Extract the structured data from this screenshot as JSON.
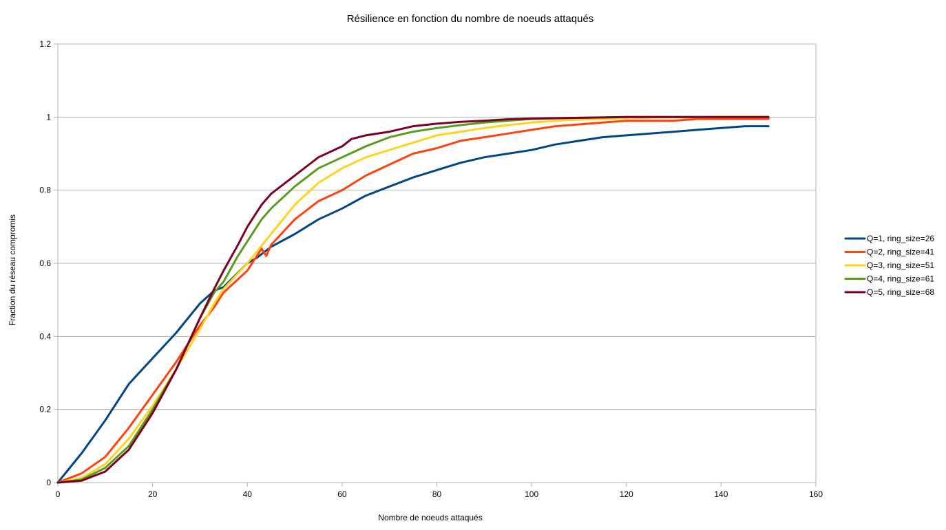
{
  "chart_data": {
    "type": "line",
    "title": "Résilience en fonction du nombre de noeuds attaqués",
    "xlabel": "Nombre de noeuds attaqués",
    "ylabel": "Fraction du réseau compromis",
    "xlim": [
      0,
      160
    ],
    "ylim": [
      0,
      1.2
    ],
    "x_ticks": [
      "0",
      "20",
      "40",
      "60",
      "80",
      "100",
      "120",
      "140",
      "160"
    ],
    "y_ticks": [
      "0",
      "0.2",
      "0.4",
      "0.6",
      "0.8",
      "1",
      "1.2"
    ],
    "grid": "horizontal",
    "legend_position": "right",
    "series": [
      {
        "name": "Q=1, ring_size=26",
        "color": "#004586",
        "points": [
          [
            0,
            0
          ],
          [
            5,
            0.08
          ],
          [
            10,
            0.17
          ],
          [
            15,
            0.27
          ],
          [
            20,
            0.34
          ],
          [
            25,
            0.41
          ],
          [
            30,
            0.49
          ],
          [
            33,
            0.525
          ],
          [
            35,
            0.535
          ],
          [
            40,
            0.6
          ],
          [
            42,
            0.615
          ],
          [
            45,
            0.645
          ],
          [
            50,
            0.68
          ],
          [
            55,
            0.72
          ],
          [
            60,
            0.75
          ],
          [
            65,
            0.785
          ],
          [
            70,
            0.81
          ],
          [
            75,
            0.835
          ],
          [
            80,
            0.855
          ],
          [
            85,
            0.875
          ],
          [
            90,
            0.89
          ],
          [
            95,
            0.9
          ],
          [
            100,
            0.91
          ],
          [
            105,
            0.925
          ],
          [
            110,
            0.935
          ],
          [
            115,
            0.945
          ],
          [
            120,
            0.95
          ],
          [
            125,
            0.955
          ],
          [
            130,
            0.96
          ],
          [
            135,
            0.965
          ],
          [
            140,
            0.97
          ],
          [
            145,
            0.975
          ],
          [
            150,
            0.975
          ]
        ]
      },
      {
        "name": "Q=2, ring_size=41",
        "color": "#ff420e",
        "points": [
          [
            0,
            0
          ],
          [
            5,
            0.025
          ],
          [
            10,
            0.07
          ],
          [
            15,
            0.15
          ],
          [
            20,
            0.24
          ],
          [
            25,
            0.33
          ],
          [
            30,
            0.43
          ],
          [
            33,
            0.48
          ],
          [
            35,
            0.52
          ],
          [
            40,
            0.58
          ],
          [
            43,
            0.64
          ],
          [
            44,
            0.62
          ],
          [
            45,
            0.65
          ],
          [
            50,
            0.72
          ],
          [
            55,
            0.77
          ],
          [
            60,
            0.8
          ],
          [
            65,
            0.84
          ],
          [
            70,
            0.87
          ],
          [
            75,
            0.9
          ],
          [
            80,
            0.915
          ],
          [
            85,
            0.935
          ],
          [
            90,
            0.945
          ],
          [
            95,
            0.955
          ],
          [
            100,
            0.965
          ],
          [
            105,
            0.975
          ],
          [
            110,
            0.98
          ],
          [
            115,
            0.985
          ],
          [
            120,
            0.99
          ],
          [
            125,
            0.99
          ],
          [
            130,
            0.99
          ],
          [
            135,
            0.995
          ],
          [
            140,
            0.995
          ],
          [
            145,
            0.995
          ],
          [
            150,
            0.995
          ]
        ]
      },
      {
        "name": "Q=3, ring_size=51",
        "color": "#ffd320",
        "points": [
          [
            0,
            0
          ],
          [
            5,
            0.012
          ],
          [
            10,
            0.05
          ],
          [
            15,
            0.12
          ],
          [
            20,
            0.21
          ],
          [
            25,
            0.31
          ],
          [
            30,
            0.42
          ],
          [
            33,
            0.49
          ],
          [
            35,
            0.53
          ],
          [
            40,
            0.6
          ],
          [
            45,
            0.68
          ],
          [
            50,
            0.76
          ],
          [
            55,
            0.82
          ],
          [
            60,
            0.86
          ],
          [
            65,
            0.89
          ],
          [
            70,
            0.91
          ],
          [
            75,
            0.93
          ],
          [
            80,
            0.95
          ],
          [
            85,
            0.96
          ],
          [
            90,
            0.97
          ],
          [
            95,
            0.978
          ],
          [
            100,
            0.985
          ],
          [
            105,
            0.99
          ],
          [
            110,
            0.993
          ],
          [
            115,
            0.995
          ],
          [
            120,
            0.997
          ],
          [
            125,
            0.998
          ],
          [
            130,
            0.999
          ],
          [
            140,
            1.0
          ],
          [
            150,
            1.0
          ]
        ]
      },
      {
        "name": "Q=4, ring_size=61",
        "color": "#579d1c",
        "points": [
          [
            0,
            0
          ],
          [
            5,
            0.008
          ],
          [
            10,
            0.04
          ],
          [
            15,
            0.1
          ],
          [
            20,
            0.2
          ],
          [
            25,
            0.31
          ],
          [
            30,
            0.45
          ],
          [
            33,
            0.52
          ],
          [
            35,
            0.55
          ],
          [
            38,
            0.62
          ],
          [
            40,
            0.66
          ],
          [
            43,
            0.72
          ],
          [
            45,
            0.75
          ],
          [
            50,
            0.81
          ],
          [
            55,
            0.86
          ],
          [
            60,
            0.89
          ],
          [
            65,
            0.92
          ],
          [
            70,
            0.945
          ],
          [
            75,
            0.96
          ],
          [
            80,
            0.97
          ],
          [
            85,
            0.978
          ],
          [
            90,
            0.985
          ],
          [
            95,
            0.99
          ],
          [
            100,
            0.995
          ],
          [
            110,
            0.998
          ],
          [
            120,
            1.0
          ],
          [
            130,
            1.0
          ],
          [
            140,
            1.0
          ],
          [
            150,
            1.0
          ]
        ]
      },
      {
        "name": "Q=5, ring_size=68",
        "color": "#7e0021",
        "points": [
          [
            0,
            0
          ],
          [
            5,
            0.005
          ],
          [
            10,
            0.03
          ],
          [
            15,
            0.09
          ],
          [
            20,
            0.19
          ],
          [
            25,
            0.31
          ],
          [
            30,
            0.45
          ],
          [
            33,
            0.53
          ],
          [
            35,
            0.58
          ],
          [
            38,
            0.65
          ],
          [
            40,
            0.7
          ],
          [
            43,
            0.76
          ],
          [
            45,
            0.79
          ],
          [
            50,
            0.84
          ],
          [
            55,
            0.89
          ],
          [
            60,
            0.92
          ],
          [
            62,
            0.94
          ],
          [
            65,
            0.95
          ],
          [
            70,
            0.96
          ],
          [
            75,
            0.975
          ],
          [
            80,
            0.982
          ],
          [
            85,
            0.987
          ],
          [
            90,
            0.99
          ],
          [
            95,
            0.994
          ],
          [
            100,
            0.996
          ],
          [
            110,
            0.998
          ],
          [
            120,
            1.0
          ],
          [
            130,
            1.0
          ],
          [
            140,
            1.0
          ],
          [
            150,
            1.0
          ]
        ]
      }
    ]
  }
}
